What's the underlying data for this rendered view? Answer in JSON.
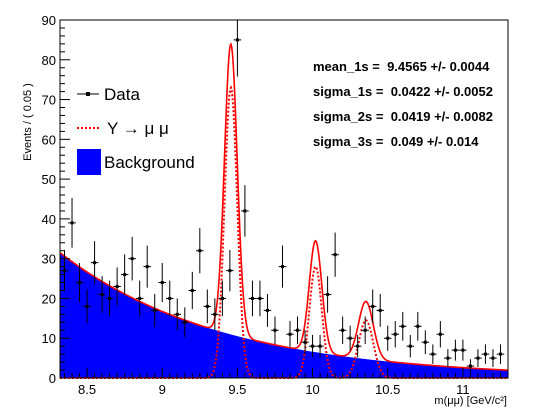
{
  "chart_data": {
    "type": "line",
    "xlabel": "m(μμ) [GeV/c²]",
    "ylabel": "Events / ( 0.05 )",
    "xlim": [
      8.32,
      11.3
    ],
    "ylim": [
      0,
      90
    ],
    "xticks": [
      "8.5",
      "9",
      "9.5",
      "10",
      "10.5",
      "11"
    ],
    "yticks": [
      "0",
      "10",
      "20",
      "30",
      "40",
      "50",
      "60",
      "70",
      "80",
      "90"
    ],
    "legend": {
      "placement": "left",
      "entries": [
        {
          "label": "Data"
        },
        {
          "label": "Υ → μ μ"
        },
        {
          "label": "Background"
        }
      ]
    },
    "fit_parameters": [
      "mean_1s =  9.4565 +/- 0.0044",
      "sigma_1s =  0.0422 +/- 0.0052",
      "sigma_2s =  0.0419 +/- 0.0082",
      "sigma_3s =  0.049 +/- 0.014"
    ],
    "colors": {
      "background_fill": "#0000ff",
      "fit_line": "#ff0000",
      "data": "#000000"
    },
    "model": {
      "background": {
        "A": 31.5,
        "k": 0.93,
        "x0": 8.32
      },
      "peaks": [
        {
          "mean": 9.4565,
          "sigma": 0.0422,
          "height": 73
        },
        {
          "mean": 10.02,
          "sigma": 0.0419,
          "height": 28
        },
        {
          "mean": 10.355,
          "sigma": 0.049,
          "height": 14.5
        }
      ]
    },
    "series": [
      {
        "name": "Data",
        "x": [
          8.35,
          8.4,
          8.45,
          8.5,
          8.55,
          8.6,
          8.65,
          8.7,
          8.75,
          8.8,
          8.85,
          8.9,
          8.95,
          9.0,
          9.05,
          9.1,
          9.15,
          9.2,
          9.25,
          9.3,
          9.35,
          9.4,
          9.45,
          9.5,
          9.55,
          9.6,
          9.65,
          9.7,
          9.75,
          9.8,
          9.85,
          9.9,
          9.95,
          10.0,
          10.05,
          10.1,
          10.15,
          10.2,
          10.25,
          10.3,
          10.35,
          10.4,
          10.45,
          10.5,
          10.55,
          10.6,
          10.65,
          10.7,
          10.75,
          10.8,
          10.85,
          10.9,
          10.95,
          11.0,
          11.05,
          11.1,
          11.15,
          11.2,
          11.25
        ],
        "y": [
          27,
          39,
          24,
          18,
          29,
          21,
          20,
          23,
          26,
          30,
          20,
          28,
          17,
          24,
          20,
          16,
          14,
          22,
          32,
          18,
          16,
          20,
          27,
          85,
          42,
          20,
          20,
          17,
          12,
          28,
          11,
          12,
          9,
          8,
          8,
          21,
          31,
          12,
          10,
          8,
          12,
          18,
          17,
          10,
          11,
          13,
          8,
          13,
          9,
          6,
          11,
          5,
          7,
          7,
          3,
          5,
          6,
          5,
          6
        ]
      },
      {
        "name": "Υ → μ μ"
      },
      {
        "name": "Background"
      }
    ]
  }
}
